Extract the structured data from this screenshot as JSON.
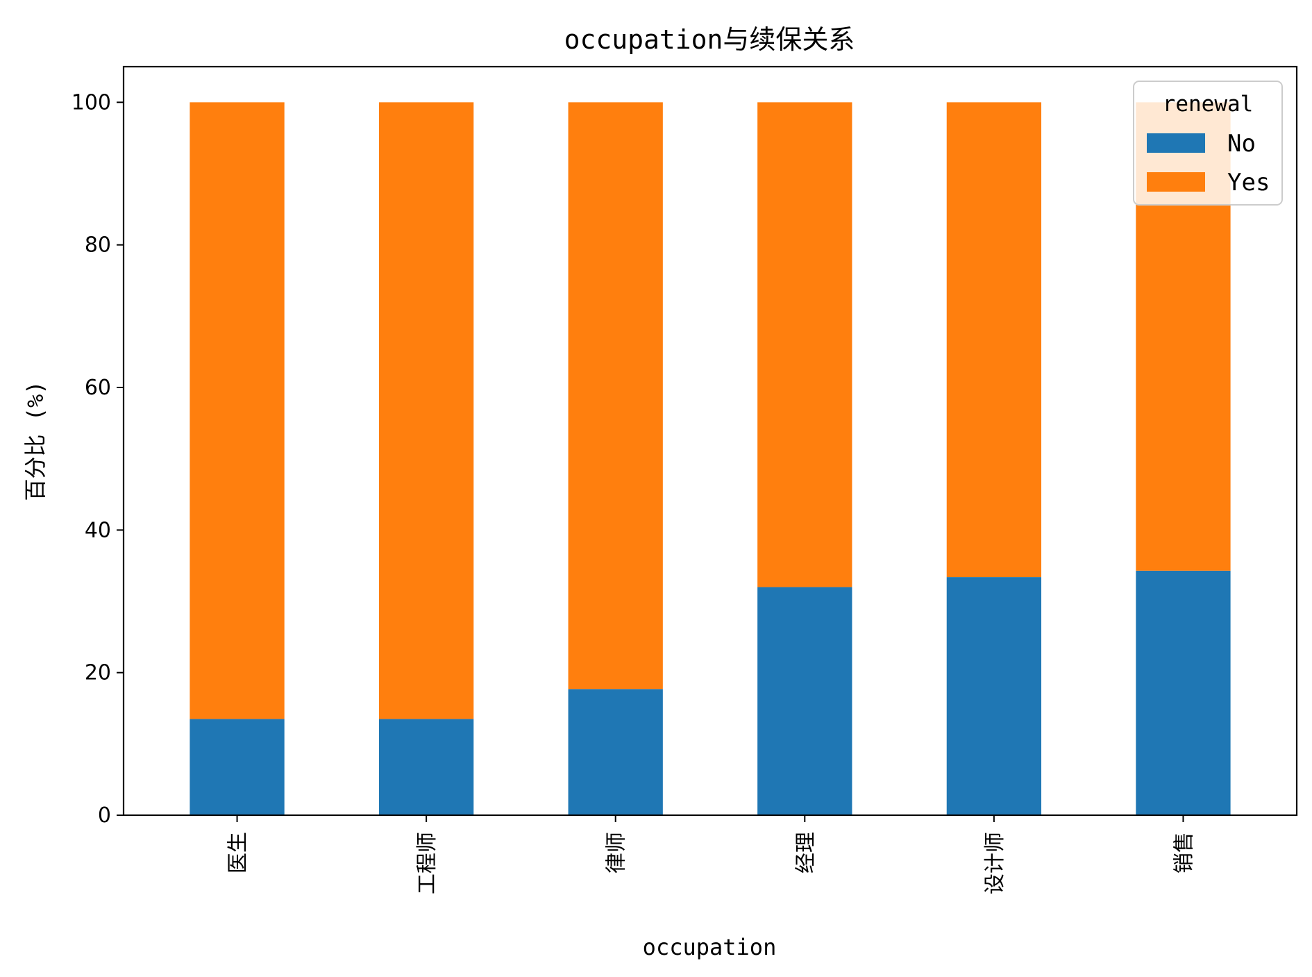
{
  "chart_data": {
    "type": "bar",
    "stacked": true,
    "title": "occupation与续保关系",
    "xlabel": "occupation",
    "ylabel": "百分比 (%)",
    "categories": [
      "医生",
      "工程师",
      "律师",
      "经理",
      "设计师",
      "销售"
    ],
    "series": [
      {
        "name": "No",
        "color": "#1f77b4",
        "values": [
          13.5,
          13.5,
          17.7,
          32.0,
          33.4,
          34.3
        ]
      },
      {
        "name": "Yes",
        "color": "#ff7f0e",
        "values": [
          86.5,
          86.5,
          82.3,
          68.0,
          66.6,
          65.7
        ]
      }
    ],
    "ylim": [
      0,
      105
    ],
    "yticks": [
      0,
      20,
      40,
      60,
      80,
      100
    ],
    "grid": false,
    "legend": {
      "title": "renewal",
      "position": "top-right"
    }
  }
}
